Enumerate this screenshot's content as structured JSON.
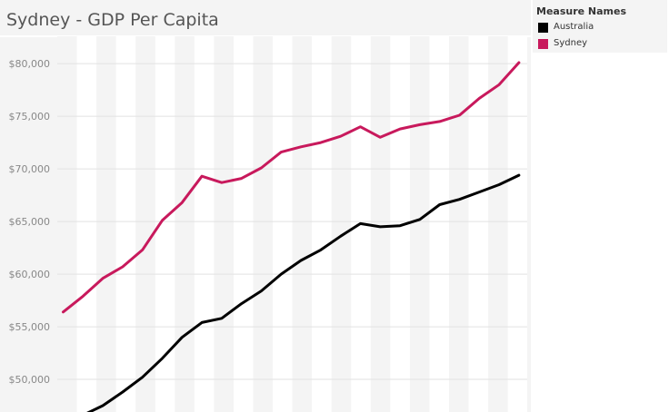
{
  "chart_data": {
    "type": "line",
    "title": "Sydney - GDP Per Capita",
    "xlabel": "",
    "ylabel": "",
    "ylim": [
      46900,
      82600
    ],
    "yticks": [
      50000,
      55000,
      60000,
      65000,
      70000,
      75000,
      80000
    ],
    "ytick_labels": [
      "$50,000",
      "$55,000",
      "$60,000",
      "$65,000",
      "$70,000",
      "$75,000",
      "$80,000"
    ],
    "grid": true,
    "legend": {
      "title": "Measure Names",
      "position": "right"
    },
    "series": [
      {
        "name": "Australia",
        "color": "#000000",
        "values": [
          46600,
          47500,
          48800,
          50200,
          52000,
          54000,
          55400,
          55800,
          57200,
          58400,
          60000,
          61300,
          62300,
          63600,
          64800,
          64500,
          64600,
          65200,
          66600,
          67100,
          67800,
          68500,
          69400
        ]
      },
      {
        "name": "Sydney",
        "color": "#c8195c",
        "values": [
          56400,
          57900,
          59600,
          60700,
          62300,
          65100,
          66800,
          69300,
          68700,
          69100,
          70100,
          71600,
          72100,
          72500,
          73100,
          74000,
          73000,
          73800,
          74200,
          74500,
          75100,
          76700,
          78000,
          80100
        ]
      }
    ]
  }
}
